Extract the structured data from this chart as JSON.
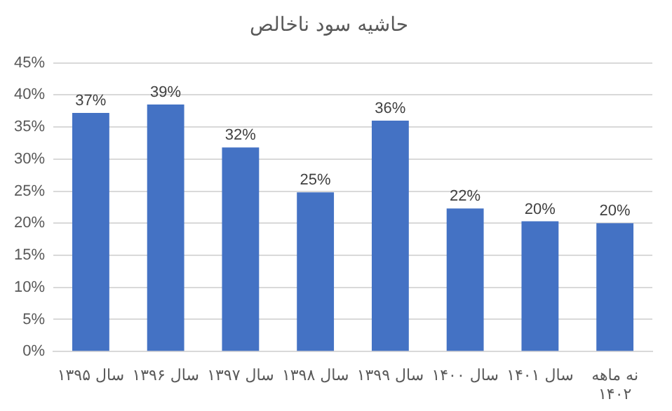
{
  "chart_data": {
    "type": "bar",
    "title": "حاشیه سود ناخالص",
    "categories": [
      "سال ۱۳۹۵",
      "سال ۱۳۹۶",
      "سال ۱۳۹۷",
      "سال ۱۳۹۸",
      "سال ۱۳۹۹",
      "سال ۱۴۰۰",
      "سال ۱۴۰۱",
      "نه ماهه ۱۴۰۲"
    ],
    "values": [
      37.2,
      38.5,
      31.8,
      24.8,
      36,
      22.3,
      20.3,
      20
    ],
    "value_labels": [
      "37%",
      "39%",
      "32%",
      "25%",
      "36%",
      "22%",
      "20%",
      "20%"
    ],
    "color": "#4472c4",
    "ylim": [
      0,
      45
    ],
    "yticks": [
      {
        "value": 0,
        "label": "0%"
      },
      {
        "value": 5,
        "label": "5%"
      },
      {
        "value": 10,
        "label": "10%"
      },
      {
        "value": 15,
        "label": "15%"
      },
      {
        "value": 20,
        "label": "20%"
      },
      {
        "value": 25,
        "label": "25%"
      },
      {
        "value": 30,
        "label": "30%"
      },
      {
        "value": 35,
        "label": "35%"
      },
      {
        "value": 40,
        "label": "40%"
      },
      {
        "value": 45,
        "label": "45%"
      }
    ],
    "grid": "y"
  }
}
